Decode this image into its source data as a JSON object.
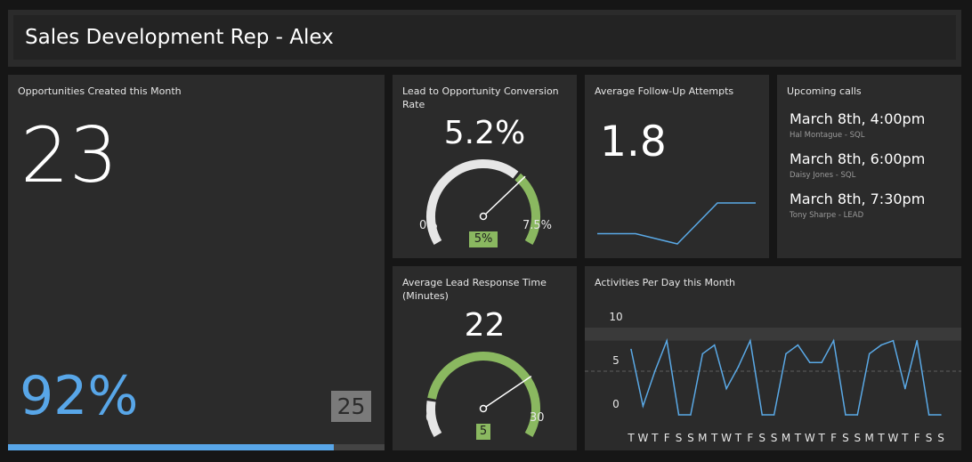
{
  "header": {
    "title": "Sales Development Rep - Alex"
  },
  "opportunities": {
    "title": "Opportunities Created this Month",
    "value": "23",
    "percent": "92%",
    "goal": "25",
    "progress_fraction": 0.92,
    "accent_color": "#58a6e8"
  },
  "conversion": {
    "title": "Lead to Opportunity Conversion Rate",
    "value": "5.2%",
    "min_label": "0%",
    "max_label": "7.5%",
    "target_label": "5%",
    "min": 0,
    "max": 7.5,
    "target": 5,
    "current": 5.2
  },
  "followup": {
    "title": "Average Follow-Up Attempts",
    "value": "1.8",
    "sparkline": [
      1.0,
      1.0,
      0.0,
      4.0,
      4.0
    ]
  },
  "calls": {
    "title": "Upcoming calls",
    "items": [
      {
        "time": "March 8th, 4:00pm",
        "contact": "Hal Montague - SQL"
      },
      {
        "time": "March 8th, 6:00pm",
        "contact": "Daisy Jones - SQL"
      },
      {
        "time": "March 8th, 7:30pm",
        "contact": "Tony Sharpe - LEAD"
      }
    ]
  },
  "response": {
    "title": "Average Lead Response Time (Minutes)",
    "value": "22",
    "min_label": "0",
    "max_label": "30",
    "target_label": "5",
    "min": 0,
    "max": 30,
    "target": 5,
    "current": 22
  },
  "chart_data": {
    "type": "line",
    "title": "Activities Per Day this Month",
    "x": [
      "T",
      "W",
      "T",
      "F",
      "S",
      "S",
      "M",
      "T",
      "W",
      "T",
      "F",
      "S",
      "S",
      "M",
      "T",
      "W",
      "T",
      "F",
      "S",
      "S",
      "M",
      "T",
      "W",
      "T",
      "F",
      "S",
      "S"
    ],
    "series": [
      {
        "values": [
          7.5,
          1,
          5,
          8.5,
          0,
          0,
          7,
          8,
          3,
          5.5,
          8.5,
          0,
          0,
          7,
          8,
          6,
          6,
          8.5,
          0,
          0,
          7,
          8,
          8.5,
          3,
          8.5,
          0,
          0
        ]
      }
    ],
    "ylim": [
      0,
      10
    ],
    "yticks": [
      "10",
      "5",
      "0"
    ],
    "target_band": [
      8.5,
      10
    ],
    "target_line": 5,
    "line_color": "#5aa9e6"
  },
  "colors": {
    "panel": "#2b2b2b",
    "background": "#161616",
    "gauge_track": "#e6e6e6",
    "gauge_target": "#8ab860"
  }
}
